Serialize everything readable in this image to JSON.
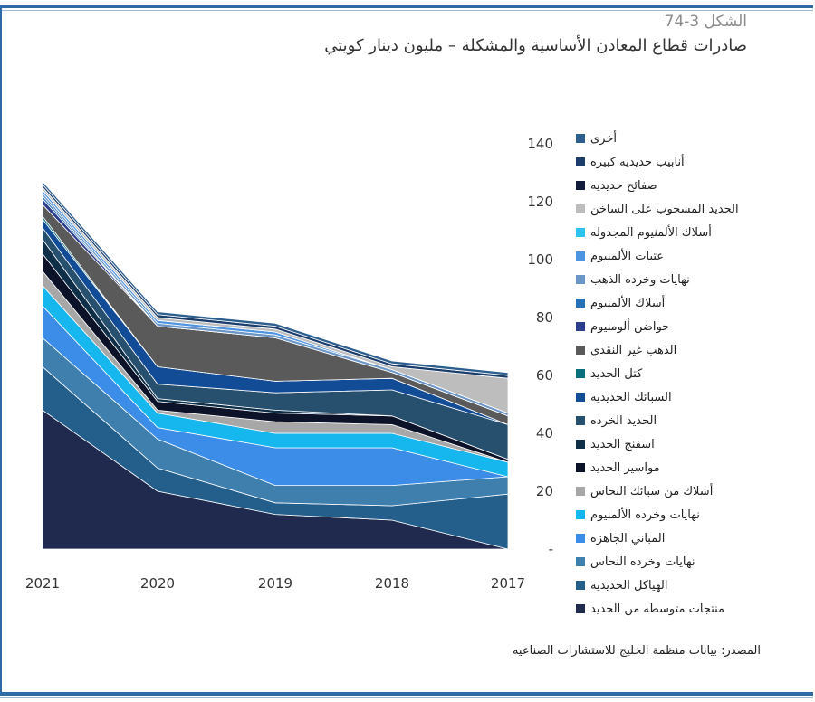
{
  "header": {
    "figure_label": "الشكل 3-74",
    "title": "صادرات قطاع المعادن الأساسية والمشكلة – مليون دينار كويتي"
  },
  "source": "المصدر: بيانات منظمة الخليج للاستشارات الصناعيه",
  "chart_data": {
    "type": "area",
    "stacked": true,
    "categories": [
      "2021",
      "2020",
      "2019",
      "2018",
      "2017"
    ],
    "ylim": [
      0,
      140
    ],
    "yticks": [
      "-",
      "20",
      "40",
      "60",
      "80",
      "100",
      "120",
      "140"
    ],
    "legend_position": "right",
    "series": [
      {
        "name": "منتجات متوسطه من الحديد",
        "color": "#1f2a4e",
        "values": [
          48,
          20,
          12,
          10,
          0
        ]
      },
      {
        "name": "الهياكل الحديديه",
        "color": "#245f8c",
        "values": [
          15,
          8,
          4,
          5,
          19
        ]
      },
      {
        "name": "نهايات  وخرده النحاس",
        "color": "#3f7fae",
        "values": [
          10,
          10,
          6,
          7,
          6
        ]
      },
      {
        "name": "المباني الجاهزه",
        "color": "#3b8de8",
        "values": [
          11,
          4,
          13,
          13,
          0
        ]
      },
      {
        "name": "نهايات وخرده الألمنيوم",
        "color": "#16b6ee",
        "values": [
          7,
          5,
          5,
          5,
          5
        ]
      },
      {
        "name": "أسلاك من سبائك النحاس",
        "color": "#a7a7a7",
        "values": [
          5,
          1,
          4,
          3,
          0
        ]
      },
      {
        "name": "مواسير الحديد",
        "color": "#0c1227",
        "values": [
          6,
          3,
          3,
          3,
          1
        ]
      },
      {
        "name": "اسفنج الحديد",
        "color": "#0f2f49",
        "values": [
          5,
          1,
          1,
          0,
          0
        ]
      },
      {
        "name": "الحديد الخرده",
        "color": "#27506f",
        "values": [
          4,
          5,
          6,
          9,
          12
        ]
      },
      {
        "name": "السبائك الحديديه",
        "color": "#134c96",
        "values": [
          3,
          6,
          4,
          4,
          0
        ]
      },
      {
        "name": "كتل الحديد",
        "color": "#0b6e7c",
        "values": [
          1,
          0,
          0,
          0,
          0
        ]
      },
      {
        "name": "الذهب غير النقدي",
        "color": "#5a5a5a",
        "values": [
          4,
          14,
          15,
          2,
          3
        ]
      },
      {
        "name": "حواضن ألومنيوم",
        "color": "#2d3e8c",
        "values": [
          2,
          0,
          0,
          0,
          0
        ]
      },
      {
        "name": "أسلاك الألمنيوم",
        "color": "#2471b8",
        "values": [
          1,
          0,
          0,
          0,
          0
        ]
      },
      {
        "name": "نهايات وخرده الذهب",
        "color": "#6b97c8",
        "values": [
          1,
          1,
          1,
          1,
          1
        ]
      },
      {
        "name": "عتبات الألمنيوم",
        "color": "#4f94e0",
        "values": [
          1,
          1,
          1,
          0,
          0
        ]
      },
      {
        "name": "أسلاك الألمنيوم المجدوله",
        "color": "#2bc4f2",
        "values": [
          0,
          0,
          0,
          0,
          0
        ]
      },
      {
        "name": "الحديد المسحوب على الساخن",
        "color": "#bdbdbd",
        "values": [
          1,
          1,
          1,
          1,
          12
        ]
      },
      {
        "name": "صفائح حديديه",
        "color": "#141c3d",
        "values": [
          0,
          0,
          0,
          0,
          0
        ]
      },
      {
        "name": "أنابيب حديديه كبيره",
        "color": "#1b3d6b",
        "values": [
          1,
          1,
          1,
          1,
          1
        ]
      },
      {
        "name": "أخرى",
        "color": "#2d5f8e",
        "values": [
          1,
          1,
          1,
          1,
          1
        ]
      }
    ]
  }
}
